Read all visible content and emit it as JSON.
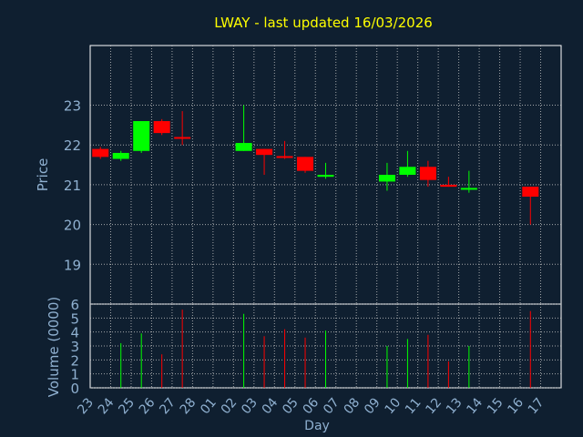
{
  "chart_data": {
    "type": "candlestick",
    "title": "LWAY - last updated 16/03/2026",
    "xlabel": "Day",
    "price_ylabel": "Price",
    "volume_ylabel": "Volume (0000)",
    "price_ylim": [
      18,
      24.5
    ],
    "price_ticks": [
      "19",
      "20",
      "21",
      "22",
      "23"
    ],
    "volume_ylim": [
      0,
      6
    ],
    "volume_ticks": [
      "0",
      "1",
      "2",
      "3",
      "4",
      "5",
      "6"
    ],
    "x_labels": [
      "23",
      "24",
      "25",
      "26",
      "27",
      "28",
      "01",
      "02",
      "03",
      "04",
      "05",
      "06",
      "07",
      "08",
      "09",
      "10",
      "11",
      "12",
      "13",
      "14",
      "15",
      "16",
      "17"
    ],
    "grid": true,
    "colors": {
      "background": "#0f1f30",
      "title": "#ffff00",
      "axis": "#ffffff",
      "label": "#8fb0d0",
      "up": "#00ff00",
      "down": "#ff0000"
    },
    "candles": [
      {
        "x": 0,
        "open": 21.9,
        "close": 21.7,
        "high": 21.95,
        "low": 21.65,
        "volume": 0
      },
      {
        "x": 1,
        "open": 21.65,
        "close": 21.8,
        "high": 21.85,
        "low": 21.6,
        "volume": 3.2
      },
      {
        "x": 2,
        "open": 21.85,
        "close": 22.6,
        "high": 22.6,
        "low": 21.8,
        "volume": 3.9
      },
      {
        "x": 3,
        "open": 22.6,
        "close": 22.3,
        "high": 22.65,
        "low": 22.25,
        "volume": 2.4
      },
      {
        "x": 4,
        "open": 22.2,
        "close": 22.18,
        "high": 22.85,
        "low": 22.0,
        "volume": 5.6
      },
      {
        "x": 7,
        "open": 21.85,
        "close": 22.05,
        "high": 23.0,
        "low": 21.85,
        "volume": 5.3
      },
      {
        "x": 8,
        "open": 21.9,
        "close": 21.75,
        "high": 21.9,
        "low": 21.25,
        "volume": 3.7
      },
      {
        "x": 9,
        "open": 21.72,
        "close": 21.7,
        "high": 22.1,
        "low": 21.65,
        "volume": 4.2
      },
      {
        "x": 10,
        "open": 21.7,
        "close": 21.35,
        "high": 21.7,
        "low": 21.3,
        "volume": 3.6
      },
      {
        "x": 11,
        "open": 21.2,
        "close": 21.25,
        "high": 21.55,
        "low": 21.15,
        "volume": 4.1
      },
      {
        "x": 14,
        "open": 21.08,
        "close": 21.25,
        "high": 21.55,
        "low": 20.85,
        "volume": 3.0
      },
      {
        "x": 15,
        "open": 21.25,
        "close": 21.45,
        "high": 21.85,
        "low": 21.2,
        "volume": 3.5
      },
      {
        "x": 16,
        "open": 21.45,
        "close": 21.12,
        "high": 21.6,
        "low": 20.95,
        "volume": 3.8
      },
      {
        "x": 17,
        "open": 21.0,
        "close": 20.95,
        "high": 21.2,
        "low": 20.95,
        "volume": 1.9
      },
      {
        "x": 18,
        "open": 20.88,
        "close": 20.92,
        "high": 21.35,
        "low": 20.8,
        "volume": 3.0
      },
      {
        "x": 21,
        "open": 20.95,
        "close": 20.7,
        "high": 20.95,
        "low": 20.0,
        "volume": 5.5
      }
    ]
  }
}
